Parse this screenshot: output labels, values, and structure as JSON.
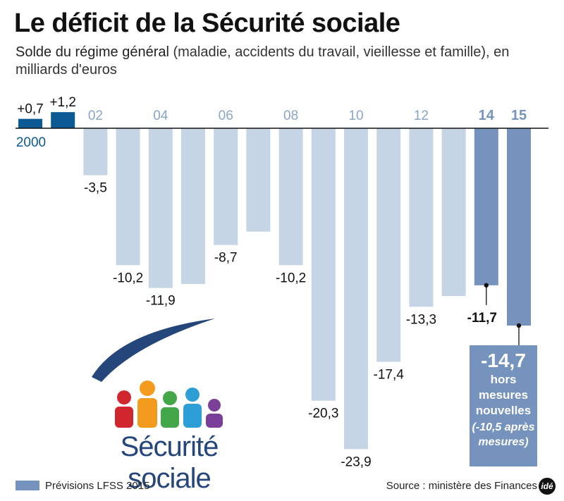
{
  "title": "Le déficit de la Sécurité sociale",
  "subtitle_lead": "Solde du régime général",
  "subtitle_rest": " (maladie, accidents du travail, vieillesse et famille), en milliards d'euros",
  "logo_text": "Sécurité sociale",
  "callout": {
    "value": "-14,7",
    "line1": "hors",
    "line2": "mesures",
    "line3": "nouvelles",
    "line4": "(-10,5 après",
    "line5": "mesures)"
  },
  "legend_label": "Prévisions LFSS 2015",
  "source": "Source : ministère des Finances",
  "brand": "idé",
  "colors": {
    "actual_positive": "#0b5a93",
    "actual_negative": "#c5d5e5",
    "forecast": "#7593bd",
    "tick_light": "#8aa6c4",
    "logo_arc": "#25467a"
  },
  "chart_data": {
    "type": "bar",
    "x": [
      2000,
      2001,
      2002,
      2003,
      2004,
      2005,
      2006,
      2007,
      2008,
      2009,
      2010,
      2011,
      2012,
      2013,
      2014,
      2015
    ],
    "values": [
      0.7,
      1.2,
      -3.5,
      -10.2,
      -11.9,
      -11.6,
      -8.7,
      -7.7,
      -10.2,
      -20.3,
      -23.9,
      -17.4,
      -13.3,
      -12.5,
      -11.7,
      -14.7
    ],
    "forecast": [
      false,
      false,
      false,
      false,
      false,
      false,
      false,
      false,
      false,
      false,
      false,
      false,
      false,
      false,
      true,
      true
    ],
    "tick_labels": [
      "2000",
      "",
      "02",
      "",
      "04",
      "",
      "06",
      "",
      "08",
      "",
      "10",
      "",
      "12",
      "",
      "14",
      "15"
    ],
    "value_labels": [
      "+0,7",
      "+1,2",
      "-3,5",
      "-10,2",
      "-11,9",
      "",
      "-8,7",
      "",
      "-10,2",
      "-20,3",
      "-23,9",
      "-17,4",
      "-13,3",
      "",
      "-11,7",
      ""
    ],
    "ylim": [
      -24,
      1.5
    ],
    "grid": false,
    "legend": "bottom-left"
  }
}
